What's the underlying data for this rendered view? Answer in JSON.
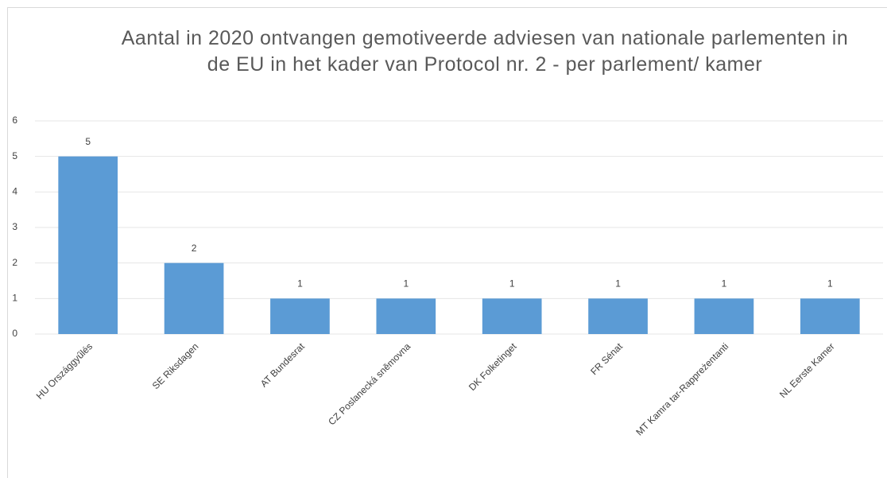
{
  "chart_data": {
    "type": "bar",
    "title": "Aantal in 2020 ontvangen gemotiveerde adviesen van nationale parlementen in de EU in het kader van Protocol nr. 2 - per parlement/ kamer",
    "categories": [
      "HU Országgyűlés",
      "SE Riksdagen",
      "AT Bundesrat",
      "CZ Poslanecká sněmovna",
      "DK Folketinget",
      "FR Sénat",
      "MT Kamra tar-Rappreżentanti",
      "NL Eerste Kamer"
    ],
    "values": [
      5,
      2,
      1,
      1,
      1,
      1,
      1,
      1
    ],
    "color": "#5b9bd5",
    "ylim": [
      0,
      6
    ],
    "yticks": [
      0,
      1,
      2,
      3,
      4,
      5,
      6
    ],
    "grid": true
  }
}
